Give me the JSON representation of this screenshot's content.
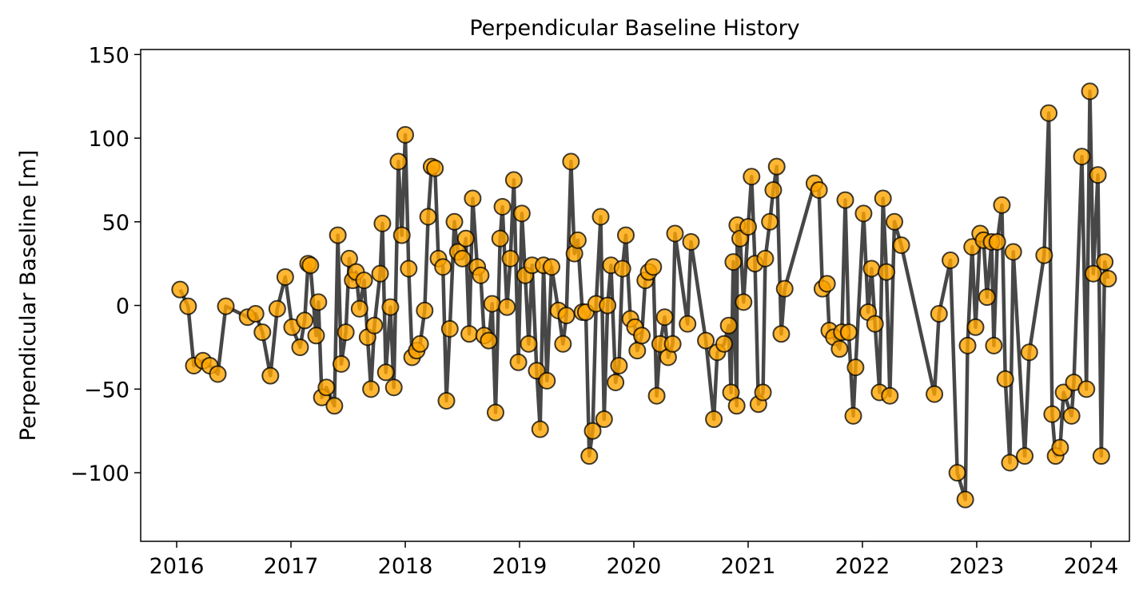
{
  "chart_data": {
    "type": "line",
    "title": "Perpendicular Baseline History",
    "ylabel": "Perpendicular Baseline [m]",
    "x": [
      2016.03,
      2016.1,
      2016.15,
      2016.23,
      2016.29,
      2016.36,
      2016.43,
      2016.62,
      2016.69,
      2016.75,
      2016.82,
      2016.88,
      2016.95,
      2017.01,
      2017.08,
      2017.12,
      2017.15,
      2017.17,
      2017.22,
      2017.24,
      2017.27,
      2017.31,
      2017.38,
      2017.41,
      2017.44,
      2017.48,
      2017.51,
      2017.54,
      2017.57,
      2017.6,
      2017.64,
      2017.67,
      2017.7,
      2017.73,
      2017.78,
      2017.8,
      2017.83,
      2017.87,
      2017.9,
      2017.94,
      2017.97,
      2018.0,
      2018.03,
      2018.06,
      2018.1,
      2018.13,
      2018.17,
      2018.2,
      2018.23,
      2018.26,
      2018.29,
      2018.33,
      2018.36,
      2018.39,
      2018.43,
      2018.46,
      2018.5,
      2018.53,
      2018.56,
      2018.59,
      2018.63,
      2018.66,
      2018.69,
      2018.73,
      2018.76,
      2018.79,
      2018.83,
      2018.85,
      2018.89,
      2018.92,
      2018.95,
      2018.99,
      2019.02,
      2019.05,
      2019.08,
      2019.11,
      2019.15,
      2019.18,
      2019.21,
      2019.24,
      2019.28,
      2019.34,
      2019.38,
      2019.41,
      2019.45,
      2019.48,
      2019.51,
      2019.55,
      2019.58,
      2019.61,
      2019.64,
      2019.67,
      2019.71,
      2019.74,
      2019.77,
      2019.8,
      2019.84,
      2019.87,
      2019.9,
      2019.93,
      2019.97,
      2020.01,
      2020.03,
      2020.07,
      2020.1,
      2020.13,
      2020.17,
      2020.2,
      2020.23,
      2020.27,
      2020.3,
      2020.34,
      2020.36,
      2020.47,
      2020.5,
      2020.63,
      2020.7,
      2020.73,
      2020.79,
      2020.83,
      2020.85,
      2020.87,
      2020.9,
      2020.905,
      2020.93,
      2020.96,
      2021.0,
      2021.03,
      2021.06,
      2021.09,
      2021.13,
      2021.15,
      2021.19,
      2021.22,
      2021.25,
      2021.29,
      2021.32,
      2021.58,
      2021.62,
      2021.65,
      2021.69,
      2021.71,
      2021.75,
      2021.8,
      2021.82,
      2021.85,
      2021.88,
      2021.92,
      2021.94,
      2022.01,
      2022.05,
      2022.08,
      2022.11,
      2022.15,
      2022.18,
      2022.21,
      2022.24,
      2022.28,
      2022.34,
      2022.63,
      2022.67,
      2022.77,
      2022.83,
      2022.9,
      2022.92,
      2022.96,
      2022.99,
      2023.03,
      2023.06,
      2023.09,
      2023.13,
      2023.15,
      2023.18,
      2023.22,
      2023.25,
      2023.29,
      2023.32,
      2023.42,
      2023.46,
      2023.59,
      2023.63,
      2023.66,
      2023.69,
      2023.73,
      2023.76,
      2023.83,
      2023.85,
      2023.92,
      2023.96,
      2023.99,
      2024.02,
      2024.06,
      2024.09,
      2024.12,
      2024.15
    ],
    "series": [
      {
        "color": "#ffa500",
        "line_color": "#333333",
        "values": [
          9.5,
          -0.5,
          -36,
          -33,
          -36,
          -41,
          -0.5,
          -7,
          -5,
          -16,
          -42,
          -2,
          17,
          -13,
          -25,
          -9,
          25,
          24,
          -18,
          2,
          -55,
          -49,
          -60,
          42,
          -35,
          -16,
          28,
          15,
          20,
          -2,
          15,
          -19,
          -50,
          -12,
          19,
          49,
          -40,
          -1,
          -49,
          86,
          42,
          102,
          22,
          -31,
          -27,
          -23,
          -3,
          53,
          83,
          82,
          28,
          23,
          -57,
          -14,
          50,
          32,
          28,
          40,
          -17,
          64,
          23,
          18,
          -18,
          -21,
          1,
          -64,
          40,
          59,
          -1,
          28,
          75,
          -34,
          55,
          18,
          -23,
          24,
          -39,
          -74,
          24,
          -45,
          23,
          -3,
          -23,
          -6,
          86,
          31,
          39,
          -4,
          -4,
          -90,
          -75,
          1,
          53,
          -68,
          0,
          24,
          -46,
          -36,
          22,
          42,
          -8,
          -13,
          -27,
          -18,
          15,
          20,
          23,
          -54,
          -23,
          -7,
          -31,
          -23,
          43,
          -11,
          38,
          -21,
          -68,
          -28,
          -23,
          -12,
          -52,
          26,
          -60,
          48,
          40,
          2,
          47,
          77,
          25,
          -59,
          -52,
          28,
          50,
          69,
          83,
          -17,
          10,
          73,
          69,
          10,
          13,
          -15,
          -19,
          -26,
          -16,
          63,
          -16,
          -66,
          -37,
          55,
          -4,
          22,
          -11,
          -52,
          64,
          20,
          -54,
          50,
          36,
          -53,
          -5,
          27,
          -100,
          -116,
          -24,
          35,
          -13,
          43,
          39,
          5,
          38,
          -24,
          38,
          60,
          -44,
          -94,
          32,
          -90,
          -28,
          30,
          115,
          -65,
          -90,
          -85,
          -52,
          -66,
          -46,
          89,
          -50,
          128,
          19,
          78,
          -90,
          26,
          16
        ]
      }
    ],
    "xlim": [
      2015.685,
      2024.336
    ],
    "xticks": [
      2016,
      2017,
      2018,
      2019,
      2020,
      2021,
      2022,
      2023,
      2024
    ],
    "ylim": [
      -141,
      153
    ],
    "yticks": [
      {
        "value": -100,
        "label": "−100"
      },
      {
        "value": -50,
        "label": "−50"
      },
      0,
      50,
      100,
      150
    ]
  }
}
